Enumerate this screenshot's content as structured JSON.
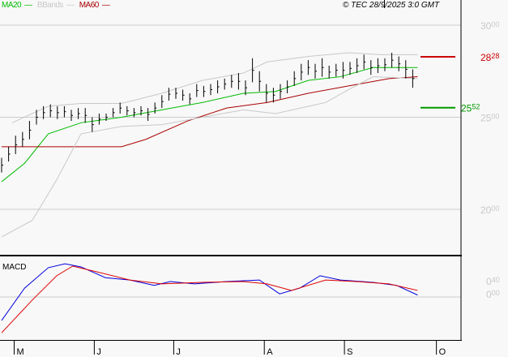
{
  "legend": {
    "ma20": "MA20",
    "bbands": "BBands",
    "ma60": "MA60"
  },
  "copyright": "© TEC 28/9/2025 3:0 GMT",
  "colors": {
    "ma20": "#00bb00",
    "bbands": "#c8c8c8",
    "ma60": "#aa0000",
    "macd": "#0000dd",
    "signal": "#dd0000",
    "resistance": "#cc0000",
    "support": "#009900",
    "axis_label": "#c8c8c8"
  },
  "chart_data": [
    {
      "type": "line",
      "title": "",
      "ylim": [
        17.5,
        31.3
      ],
      "y_ticks": [
        {
          "value": 30,
          "int": "30",
          "dec": "00"
        },
        {
          "value": 25,
          "int": "25",
          "dec": "00"
        },
        {
          "value": 20,
          "int": "20",
          "dec": "00"
        }
      ],
      "grid": true,
      "x_ticks": [
        {
          "label": "M",
          "index": 1.8
        },
        {
          "label": "J",
          "index": 13.3
        },
        {
          "label": "J",
          "index": 24.7
        },
        {
          "label": "A",
          "index": 37.7
        },
        {
          "label": "S",
          "index": 49.2
        },
        {
          "label": "O",
          "index": 62.4
        }
      ],
      "bars_hl": [
        [
          22.8,
          22.0
        ],
        [
          23.4,
          22.6
        ],
        [
          24.0,
          23.0
        ],
        [
          24.2,
          23.4
        ],
        [
          24.8,
          23.8
        ],
        [
          25.4,
          24.6
        ],
        [
          25.6,
          24.9
        ],
        [
          25.7,
          25.0
        ],
        [
          25.6,
          24.9
        ],
        [
          25.6,
          25.0
        ],
        [
          25.4,
          24.8
        ],
        [
          25.5,
          24.9
        ],
        [
          25.5,
          24.7
        ],
        [
          25.0,
          24.2
        ],
        [
          25.2,
          24.6
        ],
        [
          25.2,
          24.8
        ],
        [
          25.5,
          25.0
        ],
        [
          25.8,
          25.2
        ],
        [
          25.6,
          25.1
        ],
        [
          25.5,
          25.0
        ],
        [
          25.6,
          25.1
        ],
        [
          25.5,
          24.8
        ],
        [
          25.8,
          25.2
        ],
        [
          26.2,
          25.5
        ],
        [
          26.6,
          25.9
        ],
        [
          26.6,
          26.0
        ],
        [
          26.5,
          25.9
        ],
        [
          26.3,
          25.7
        ],
        [
          26.8,
          26.1
        ],
        [
          26.7,
          26.1
        ],
        [
          26.8,
          26.2
        ],
        [
          27.0,
          26.3
        ],
        [
          27.1,
          26.5
        ],
        [
          27.3,
          26.6
        ],
        [
          27.4,
          26.5
        ],
        [
          27.0,
          26.2
        ],
        [
          28.2,
          26.9
        ],
        [
          27.5,
          26.4
        ],
        [
          26.8,
          25.8
        ],
        [
          26.6,
          25.8
        ],
        [
          26.8,
          26.0
        ],
        [
          27.0,
          26.3
        ],
        [
          27.5,
          26.7
        ],
        [
          27.9,
          27.0
        ],
        [
          28.1,
          27.3
        ],
        [
          27.9,
          27.1
        ],
        [
          28.2,
          27.2
        ],
        [
          27.8,
          27.1
        ],
        [
          27.9,
          27.2
        ],
        [
          28.0,
          27.1
        ],
        [
          28.0,
          27.3
        ],
        [
          28.2,
          27.4
        ],
        [
          28.4,
          27.6
        ],
        [
          28.1,
          27.3
        ],
        [
          28.2,
          27.4
        ],
        [
          28.2,
          27.5
        ],
        [
          28.5,
          27.7
        ],
        [
          28.3,
          27.5
        ],
        [
          28.1,
          27.1
        ],
        [
          27.6,
          26.6
        ]
      ],
      "series": [
        {
          "name": "MA20",
          "points": [
            [
              0,
              21.5
            ],
            [
              3.3,
              22.5
            ],
            [
              6.7,
              24.1
            ],
            [
              11.4,
              24.7
            ],
            [
              17.2,
              25.0
            ],
            [
              23,
              25.4
            ],
            [
              28.8,
              25.8
            ],
            [
              34.7,
              26.3
            ],
            [
              39.3,
              26.4
            ],
            [
              44,
              27.0
            ],
            [
              48.6,
              27.2
            ],
            [
              53.3,
              27.7
            ],
            [
              59.7,
              27.7
            ]
          ]
        },
        {
          "name": "MA60",
          "points": [
            [
              0,
              23.4
            ],
            [
              11.4,
              23.4
            ],
            [
              17.2,
              23.4
            ],
            [
              20.7,
              23.8
            ],
            [
              26.7,
              24.8
            ],
            [
              32.3,
              25.5
            ],
            [
              38.1,
              25.8
            ],
            [
              44,
              26.3
            ],
            [
              49.8,
              26.7
            ],
            [
              55.6,
              27.1
            ],
            [
              59.7,
              27.2
            ]
          ]
        },
        {
          "name": "BBands",
          "role": "upper",
          "points": [
            [
              1.5,
              24.7
            ],
            [
              6.7,
              25.6
            ],
            [
              11.4,
              25.75
            ],
            [
              17.2,
              25.75
            ],
            [
              23,
              26.3
            ],
            [
              28.8,
              27.0
            ],
            [
              34.7,
              27.4
            ],
            [
              38.1,
              28.0
            ],
            [
              44,
              28.3
            ],
            [
              49.8,
              28.5
            ],
            [
              54.4,
              28.4
            ],
            [
              59.7,
              28.4
            ]
          ]
        },
        {
          "name": "BBands",
          "role": "lower",
          "points": [
            [
              0,
              18.5
            ],
            [
              4.4,
              19.4
            ],
            [
              7.9,
              21.6
            ],
            [
              11.4,
              24.1
            ],
            [
              17.2,
              24.5
            ],
            [
              23,
              24.6
            ],
            [
              28.8,
              25.0
            ],
            [
              34.7,
              25.4
            ],
            [
              39.3,
              25.2
            ],
            [
              46.5,
              25.8
            ],
            [
              49.8,
              26.5
            ],
            [
              53.3,
              27.2
            ],
            [
              59.7,
              27.1
            ]
          ]
        }
      ],
      "levels": [
        {
          "value": 28.28,
          "int": "28",
          "dec": "28",
          "kind": "resistance"
        },
        {
          "value": 25.52,
          "int": "25",
          "dec": "52",
          "kind": "support"
        }
      ]
    },
    {
      "type": "line",
      "title": "MACD",
      "ylim": [
        -1.1,
        1.05
      ],
      "y_ticks": [
        {
          "value": 0.4,
          "int": "0",
          "dec": "40"
        },
        {
          "value": 0,
          "int": "0",
          "dec": "00"
        }
      ],
      "series": [
        {
          "name": "MACD",
          "points": [
            [
              0,
              -0.61
            ],
            [
              3.3,
              0.23
            ],
            [
              6.7,
              0.76
            ],
            [
              9.1,
              0.86
            ],
            [
              11.4,
              0.78
            ],
            [
              14.9,
              0.5
            ],
            [
              18.4,
              0.44
            ],
            [
              21.9,
              0.3
            ],
            [
              24.2,
              0.4
            ],
            [
              27.7,
              0.34
            ],
            [
              32.3,
              0.4
            ],
            [
              37,
              0.44
            ],
            [
              39.9,
              0.08
            ],
            [
              42.8,
              0.23
            ],
            [
              45.7,
              0.55
            ],
            [
              48.6,
              0.44
            ],
            [
              53.3,
              0.38
            ],
            [
              56.7,
              0.3
            ],
            [
              59.7,
              0.05
            ]
          ]
        },
        {
          "name": "Signal",
          "points": [
            [
              0,
              -0.93
            ],
            [
              4.4,
              -0.08
            ],
            [
              7.9,
              0.55
            ],
            [
              10.2,
              0.8
            ],
            [
              13.7,
              0.65
            ],
            [
              18.4,
              0.44
            ],
            [
              23,
              0.34
            ],
            [
              28.8,
              0.38
            ],
            [
              34.7,
              0.4
            ],
            [
              38.1,
              0.34
            ],
            [
              41.6,
              0.17
            ],
            [
              46.5,
              0.44
            ],
            [
              50.9,
              0.4
            ],
            [
              55.6,
              0.34
            ],
            [
              59.7,
              0.17
            ]
          ]
        }
      ]
    }
  ]
}
